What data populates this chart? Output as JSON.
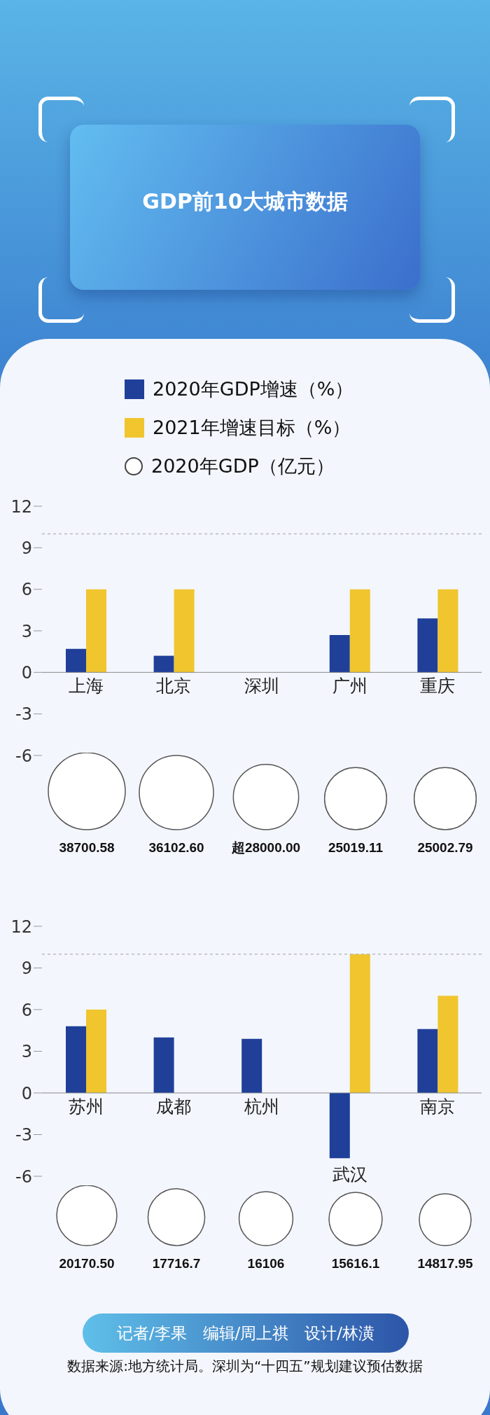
{
  "chart_data": [
    {
      "type": "bar",
      "title": "GDP前10大城市数据",
      "categories": [
        "上海",
        "北京",
        "深圳",
        "广州",
        "重庆"
      ],
      "series": [
        {
          "name": "2020年GDP增速（%）",
          "color": "#1f3f99",
          "values": [
            1.7,
            1.2,
            null,
            2.7,
            3.9
          ]
        },
        {
          "name": "2021年增速目标（%）",
          "color": "#f0c52e",
          "values": [
            6,
            6,
            null,
            6,
            6
          ]
        }
      ],
      "ylim": [
        -6,
        12
      ],
      "yticks": [
        -6,
        -3,
        0,
        3,
        6,
        9,
        12
      ],
      "legend": "top",
      "ref_lines": [
        {
          "axis": "y",
          "value": 10,
          "color": "#bbbbbb",
          "line_style": "dashed"
        }
      ]
    },
    {
      "type": "bubble",
      "categories": [
        null,
        null,
        null,
        null,
        null
      ],
      "legend": "top",
      "series": [
        {
          "name": "2020年GDP（亿元）",
          "color": "#ffffff",
          "values": [
            38700.58,
            36102.6,
            28000,
            25019.11,
            25002.79
          ],
          "sizes": [
            1,
            0.93,
            0.72,
            0.65,
            0.65
          ],
          "value_labels": [
            "38700.58",
            "36102.60",
            "超28000.00",
            "25019.11",
            "25002.79"
          ]
        }
      ]
    },
    {
      "type": "bar",
      "categories": [
        "苏州",
        "成都",
        "杭州",
        "武汉",
        "南京"
      ],
      "series": [
        {
          "color": "#1f3f99",
          "values": [
            4.8,
            4.0,
            3.9,
            -4.7,
            4.6
          ]
        },
        {
          "color": "#f0c52e",
          "values": [
            6,
            null,
            null,
            10,
            7
          ]
        }
      ],
      "ylim": [
        -6,
        12
      ],
      "yticks": [
        -6,
        -3,
        0,
        3,
        6,
        9,
        12
      ],
      "ref_lines": [
        {
          "axis": "y",
          "value": 10,
          "color": "#bbbbbb",
          "line_style": "dashed"
        }
      ]
    },
    {
      "type": "bubble",
      "categories": [
        null,
        null,
        null,
        null,
        null
      ],
      "series": [
        {
          "color": "#ffffff",
          "values": [
            20170.5,
            17716.7,
            16106,
            15616.1,
            14817.95
          ],
          "sizes": [
            1,
            0.89,
            0.8,
            0.78,
            0.74
          ],
          "value_labels": [
            "20170.50",
            "17716.7",
            "16106",
            "15616.1",
            "14817.95"
          ]
        }
      ],
      "annotations": [
        "记者/李果　编辑/周上祺　设计/林潢",
        "数据来源:地方统计局。深圳为“十四五”规划建议预估数据"
      ]
    }
  ]
}
